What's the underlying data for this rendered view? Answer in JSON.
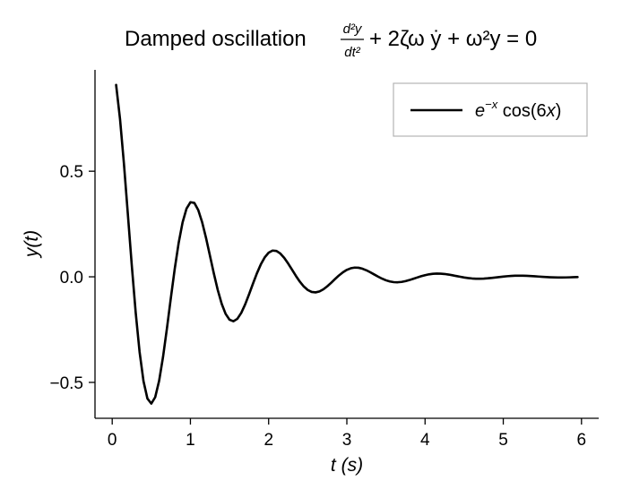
{
  "chart_data": {
    "type": "line",
    "title": {
      "prefix": "Damped oscillation ",
      "frac_num": "d²y",
      "frac_den": "dt²",
      "suffix": "+ 2ζω ẏ + ω²y = 0"
    },
    "xlabel": "t (s)",
    "ylabel": "y(t)",
    "xlim": [
      -0.22,
      6.22
    ],
    "ylim": [
      -0.67,
      0.98
    ],
    "xticks": [
      0,
      1,
      2,
      3,
      4,
      5,
      6
    ],
    "xtick_labels": [
      "0",
      "1",
      "2",
      "3",
      "4",
      "5",
      "6"
    ],
    "yticks": [
      -0.5,
      0.0,
      0.5
    ],
    "ytick_labels": [
      "−0.5",
      "0.0",
      "0.5"
    ],
    "grid": false,
    "legend_position": "top-right",
    "series": [
      {
        "name": "e^{−x} cos(6x)",
        "color": "#000000",
        "formula": "exp(-x)*cos(6*x)",
        "x": [
          0.05,
          0.1,
          0.15,
          0.2,
          0.25,
          0.3,
          0.35,
          0.4,
          0.45,
          0.5,
          0.55,
          0.6,
          0.65,
          0.7,
          0.75,
          0.8,
          0.85,
          0.9,
          0.95,
          1.0,
          1.05,
          1.1,
          1.15,
          1.2,
          1.25,
          1.3,
          1.35,
          1.4,
          1.45,
          1.5,
          1.55,
          1.6,
          1.65,
          1.7,
          1.75,
          1.8,
          1.85,
          1.9,
          1.95,
          2.0,
          2.05,
          2.1,
          2.15,
          2.2,
          2.25,
          2.3,
          2.35,
          2.4,
          2.45,
          2.5,
          2.55,
          2.6,
          2.65,
          2.7,
          2.75,
          2.8,
          2.85,
          2.9,
          2.95,
          3.0,
          3.05,
          3.1,
          3.15,
          3.2,
          3.25,
          3.3,
          3.35,
          3.4,
          3.45,
          3.5,
          3.55,
          3.6,
          3.65,
          3.7,
          3.75,
          3.8,
          3.85,
          3.9,
          3.95,
          4.0,
          4.05,
          4.1,
          4.15,
          4.2,
          4.25,
          4.3,
          4.35,
          4.4,
          4.45,
          4.5,
          4.55,
          4.6,
          4.65,
          4.7,
          4.75,
          4.8,
          4.85,
          4.9,
          4.95,
          5.0,
          5.05,
          5.1,
          5.15,
          5.2,
          5.25,
          5.3,
          5.35,
          5.4,
          5.45,
          5.5,
          5.55,
          5.6,
          5.65,
          5.7,
          5.75,
          5.8,
          5.85,
          5.9,
          5.95
        ]
      }
    ],
    "legend_label": {
      "base": "e",
      "exponent": "−x",
      "rest_prefix": " cos(6",
      "rest_var": "x",
      "rest_suffix": ")"
    }
  }
}
